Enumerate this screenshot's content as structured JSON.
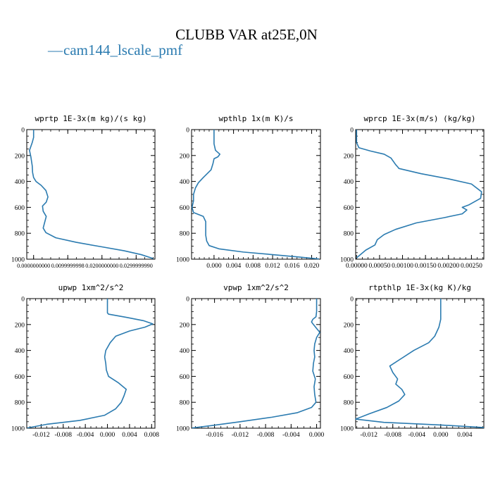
{
  "page": {
    "title": "CLUBB VAR at25E,0N",
    "legend_label": "cam144_lscale_pmf",
    "line_color": "#2b7bb0"
  },
  "chart_data": [
    {
      "type": "line",
      "title": "wprtp  1E-3x(m kg)/(s kg)",
      "xlim": [
        -0.002,
        0.0355
      ],
      "ylim": [
        1000,
        0
      ],
      "yticks": [
        0,
        200,
        400,
        600,
        800,
        1000
      ],
      "xticks": [
        0.0,
        0.00999999,
        0.02,
        0.0299999
      ],
      "xtick_labels": [
        "0.0000000000",
        "0.0099999998",
        "0.0200000000",
        "0.0299999990"
      ],
      "series": [
        {
          "name": "cam144_lscale_pmf",
          "points": [
            [
              0.0,
              0
            ],
            [
              0.0,
              60
            ],
            [
              -0.0004,
              100
            ],
            [
              -0.0012,
              160
            ],
            [
              -0.0008,
              210
            ],
            [
              -0.0004,
              280
            ],
            [
              -0.0003,
              330
            ],
            [
              0.0,
              370
            ],
            [
              0.0007,
              400
            ],
            [
              0.0022,
              430
            ],
            [
              0.0036,
              470
            ],
            [
              0.0042,
              520
            ],
            [
              0.0037,
              560
            ],
            [
              0.0026,
              590
            ],
            [
              0.0028,
              630
            ],
            [
              0.0037,
              670
            ],
            [
              0.0033,
              710
            ],
            [
              0.0028,
              760
            ],
            [
              0.0036,
              795
            ],
            [
              0.0065,
              835
            ],
            [
              0.0125,
              870
            ],
            [
              0.02,
              905
            ],
            [
              0.0265,
              935
            ],
            [
              0.0315,
              965
            ],
            [
              0.035,
              995
            ]
          ]
        }
      ]
    },
    {
      "type": "line",
      "title": "wpthlp  1x(m K)/s",
      "xlim": [
        -0.0046,
        0.0218
      ],
      "ylim": [
        1000,
        0
      ],
      "yticks": [
        0,
        200,
        400,
        600,
        800,
        1000
      ],
      "xticks": [
        0.0,
        0.004,
        0.008,
        0.012,
        0.016,
        0.02
      ],
      "xtick_labels": [
        "0.000",
        "0.004",
        "0.008",
        "0.012",
        "0.016",
        "0.020"
      ],
      "series": [
        {
          "name": "cam144_lscale_pmf",
          "points": [
            [
              0.0,
              0
            ],
            [
              0.0,
              60
            ],
            [
              0.0,
              110
            ],
            [
              0.0003,
              160
            ],
            [
              0.0012,
              190
            ],
            [
              0.0008,
              210
            ],
            [
              0.0,
              225
            ],
            [
              -0.0002,
              260
            ],
            [
              -0.0006,
              310
            ],
            [
              -0.0022,
              370
            ],
            [
              -0.0032,
              410
            ],
            [
              -0.0038,
              450
            ],
            [
              -0.0042,
              500
            ],
            [
              -0.0042,
              550
            ],
            [
              -0.0045,
              600
            ],
            [
              -0.0042,
              640
            ],
            [
              -0.0022,
              670
            ],
            [
              -0.0017,
              710
            ],
            [
              -0.0017,
              760
            ],
            [
              -0.0017,
              815
            ],
            [
              -0.0015,
              860
            ],
            [
              -0.001,
              895
            ],
            [
              0.001,
              920
            ],
            [
              0.006,
              945
            ],
            [
              0.012,
              965
            ],
            [
              0.017,
              982
            ],
            [
              0.0215,
              998
            ]
          ]
        }
      ]
    },
    {
      "type": "line",
      "title": "wprcp  1E-3x(m/s) (kg/kg)",
      "xlim": [
        -2e-05,
        0.00277
      ],
      "ylim": [
        1000,
        0
      ],
      "yticks": [
        0,
        200,
        400,
        600,
        800,
        1000
      ],
      "xticks": [
        0.0,
        0.0005,
        0.001,
        0.0015,
        0.002,
        0.0025
      ],
      "xtick_labels": [
        "0.00000",
        "0.00050",
        "0.00100",
        "0.00150",
        "0.00200",
        "0.00250"
      ],
      "series": [
        {
          "name": "cam144_lscale_pmf",
          "points": [
            [
              0.0,
              0
            ],
            [
              0.0,
              100
            ],
            [
              5e-05,
              140
            ],
            [
              0.0003,
              165
            ],
            [
              0.0006,
              190
            ],
            [
              0.00075,
              220
            ],
            [
              0.00085,
              270
            ],
            [
              0.0009,
              290
            ],
            [
              0.00092,
              300
            ],
            [
              0.0014,
              340
            ],
            [
              0.002,
              380
            ],
            [
              0.0025,
              420
            ],
            [
              0.00272,
              480
            ],
            [
              0.0027,
              530
            ],
            [
              0.00245,
              580
            ],
            [
              0.0023,
              600
            ],
            [
              0.0024,
              620
            ],
            [
              0.0023,
              650
            ],
            [
              0.0019,
              680
            ],
            [
              0.0013,
              720
            ],
            [
              0.00085,
              770
            ],
            [
              0.0006,
              810
            ],
            [
              0.00045,
              850
            ],
            [
              0.0004,
              890
            ],
            [
              0.0002,
              930
            ],
            [
              0.0,
              990
            ]
          ]
        }
      ]
    },
    {
      "type": "line",
      "title": "upwp  1xm^2/s^2",
      "xlim": [
        -0.0146,
        0.0086
      ],
      "ylim": [
        1000,
        0
      ],
      "yticks": [
        0,
        200,
        400,
        600,
        800,
        1000
      ],
      "xticks": [
        -0.012,
        -0.008,
        -0.004,
        0.0,
        0.004,
        0.008
      ],
      "xtick_labels": [
        "-0.012",
        "-0.008",
        "-0.004",
        "0.000",
        "0.004",
        "0.008"
      ],
      "series": [
        {
          "name": "cam144_lscale_pmf",
          "points": [
            [
              0.0,
              0
            ],
            [
              0.0,
              60
            ],
            [
              0.0,
              110
            ],
            [
              0.0002,
              120
            ],
            [
              0.0035,
              145
            ],
            [
              0.0065,
              170
            ],
            [
              0.0082,
              195
            ],
            [
              0.0068,
              220
            ],
            [
              0.004,
              250
            ],
            [
              0.0015,
              290
            ],
            [
              0.0005,
              340
            ],
            [
              -0.0003,
              400
            ],
            [
              -0.0005,
              450
            ],
            [
              -0.0003,
              500
            ],
            [
              -0.0002,
              550
            ],
            [
              0.0002,
              600
            ],
            [
              0.002,
              650
            ],
            [
              0.0034,
              700
            ],
            [
              0.003,
              750
            ],
            [
              0.0025,
              800
            ],
            [
              0.0015,
              850
            ],
            [
              -0.0005,
              900
            ],
            [
              -0.005,
              940
            ],
            [
              -0.011,
              970
            ],
            [
              -0.0145,
              998
            ]
          ]
        }
      ]
    },
    {
      "type": "line",
      "title": "vpwp  1xm^2/s^2",
      "xlim": [
        -0.0196,
        0.0006
      ],
      "ylim": [
        1000,
        0
      ],
      "yticks": [
        0,
        200,
        400,
        600,
        800,
        1000
      ],
      "xticks": [
        -0.016,
        -0.012,
        -0.008,
        -0.004,
        0.0
      ],
      "xtick_labels": [
        "-0.016",
        "-0.012",
        "-0.008",
        "-0.004",
        "0.000"
      ],
      "series": [
        {
          "name": "cam144_lscale_pmf",
          "points": [
            [
              0.0,
              0
            ],
            [
              0.0,
              60
            ],
            [
              0.0,
              100
            ],
            [
              -0.0001,
              140
            ],
            [
              -0.0006,
              160
            ],
            [
              -0.0008,
              180
            ],
            [
              -0.0005,
              200
            ],
            [
              0.0,
              230
            ],
            [
              0.0005,
              260
            ],
            [
              0.0,
              300
            ],
            [
              -0.0003,
              350
            ],
            [
              -0.0004,
              400
            ],
            [
              -0.0003,
              450
            ],
            [
              -0.0005,
              500
            ],
            [
              -0.0006,
              560
            ],
            [
              -0.0002,
              620
            ],
            [
              -0.0004,
              680
            ],
            [
              -0.0003,
              740
            ],
            [
              -0.0001,
              800
            ],
            [
              -0.0008,
              840
            ],
            [
              -0.003,
              880
            ],
            [
              -0.007,
              915
            ],
            [
              -0.012,
              950
            ],
            [
              -0.0165,
              980
            ],
            [
              -0.0195,
              998
            ]
          ]
        }
      ]
    },
    {
      "type": "line",
      "title": "rtpthlp  1E-3x(kg K)/kg",
      "xlim": [
        -0.0142,
        0.0072
      ],
      "ylim": [
        1000,
        0
      ],
      "yticks": [
        0,
        200,
        400,
        600,
        800,
        1000
      ],
      "xticks": [
        -0.012,
        -0.008,
        -0.004,
        0.0,
        0.004
      ],
      "xtick_labels": [
        "-0.012",
        "-0.008",
        "-0.004",
        "0.000",
        "0.004"
      ],
      "series": [
        {
          "name": "cam144_lscale_pmf",
          "points": [
            [
              0.0,
              0
            ],
            [
              0.0,
              80
            ],
            [
              0.0,
              160
            ],
            [
              -0.0003,
              220
            ],
            [
              -0.001,
              290
            ],
            [
              -0.002,
              340
            ],
            [
              -0.0045,
              400
            ],
            [
              -0.0065,
              460
            ],
            [
              -0.0085,
              520
            ],
            [
              -0.008,
              570
            ],
            [
              -0.0072,
              620
            ],
            [
              -0.0075,
              660
            ],
            [
              -0.0065,
              700
            ],
            [
              -0.006,
              740
            ],
            [
              -0.007,
              790
            ],
            [
              -0.009,
              840
            ],
            [
              -0.012,
              890
            ],
            [
              -0.0142,
              930
            ],
            [
              -0.0095,
              955
            ],
            [
              0.0,
              975
            ],
            [
              0.0072,
              995
            ]
          ]
        }
      ]
    }
  ]
}
